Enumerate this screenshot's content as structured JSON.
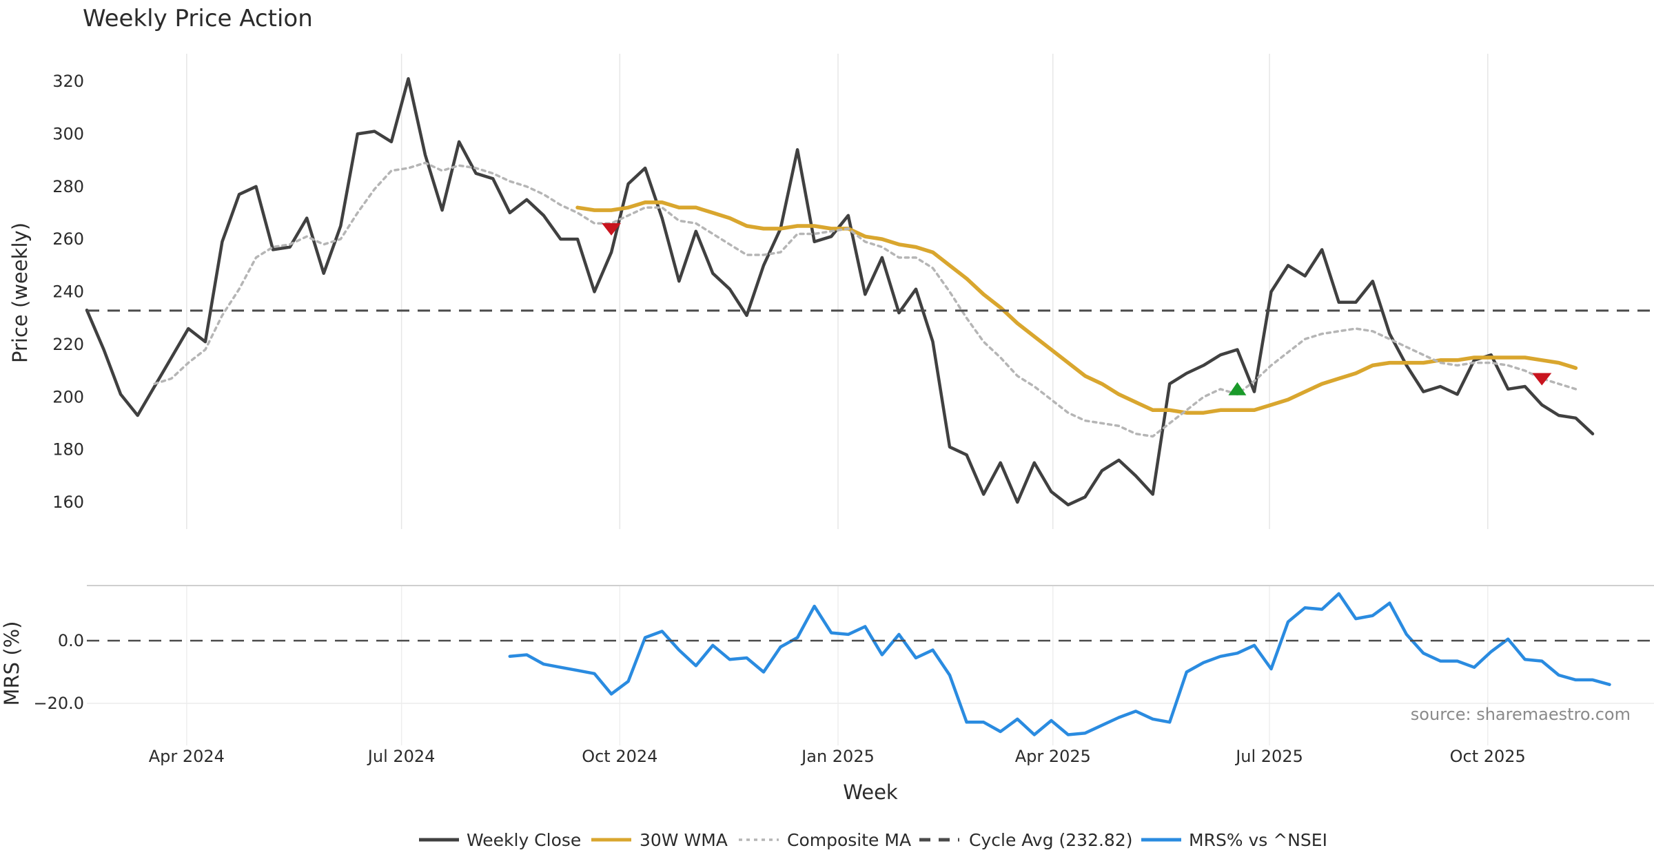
{
  "chart_data": {
    "type": "line",
    "title": "Weekly Price Action",
    "xlabel": "Week",
    "source_note": "source: sharemaestro.com",
    "x_ticks": [
      "Apr 2024",
      "Jul 2024",
      "Oct 2024",
      "Jan 2025",
      "Apr 2025",
      "Jul 2025",
      "Oct 2025"
    ],
    "price_panel": {
      "ylabel": "Price (weekly)",
      "ylim": [
        150,
        330
      ],
      "y_ticks": [
        "160",
        "180",
        "200",
        "220",
        "240",
        "260",
        "280",
        "300",
        "320"
      ],
      "grid": "vertical",
      "series": [
        {
          "name": "Weekly Close",
          "color": "#404040",
          "style": "solid",
          "values": [
            233,
            218,
            201,
            193,
            204,
            215,
            226,
            221,
            259,
            277,
            280,
            256,
            257,
            268,
            247,
            265,
            300,
            301,
            297,
            321,
            292,
            271,
            297,
            285,
            283,
            270,
            275,
            269,
            260,
            260,
            240,
            255,
            281,
            287,
            268,
            244,
            263,
            247,
            241,
            231,
            250,
            264,
            294,
            259,
            261,
            269,
            239,
            253,
            232,
            241,
            221,
            181,
            178,
            163,
            175,
            160,
            175,
            164,
            159,
            162,
            172,
            176,
            170,
            163,
            205,
            209,
            212,
            216,
            218,
            202,
            240,
            250,
            246,
            256,
            236,
            236,
            244,
            224,
            212,
            202,
            204,
            201,
            214,
            216,
            203,
            204,
            197,
            193,
            192,
            186
          ]
        },
        {
          "name": "30W WMA",
          "color": "#d9a62e",
          "style": "solid",
          "start_index": 29,
          "values": [
            272,
            271,
            271,
            272,
            274,
            274,
            272,
            272,
            270,
            268,
            265,
            264,
            264,
            265,
            265,
            264,
            264,
            261,
            260,
            258,
            257,
            255,
            250,
            245,
            239,
            234,
            228,
            223,
            218,
            213,
            208,
            205,
            201,
            198,
            195,
            195,
            194,
            194,
            195,
            195,
            195,
            197,
            199,
            202,
            205,
            207,
            209,
            212,
            213,
            213,
            213,
            214,
            214,
            215,
            215,
            215,
            215,
            214,
            213,
            211
          ]
        },
        {
          "name": "Composite MA",
          "color": "#b5b5b5",
          "style": "dotted",
          "start_index": 4,
          "values": [
            205,
            207,
            213,
            218,
            231,
            241,
            253,
            257,
            258,
            261,
            258,
            260,
            270,
            279,
            286,
            287,
            289,
            286,
            288,
            287,
            285,
            282,
            280,
            277,
            273,
            270,
            266,
            266,
            269,
            272,
            272,
            267,
            266,
            262,
            258,
            254,
            254,
            255,
            262,
            262,
            263,
            264,
            259,
            257,
            253,
            253,
            249,
            240,
            230,
            221,
            215,
            208,
            204,
            199,
            194,
            191,
            190,
            189,
            186,
            185,
            190,
            195,
            200,
            203,
            201,
            206,
            212,
            217,
            222,
            224,
            225,
            226,
            225,
            222,
            219,
            216,
            213,
            212,
            213,
            213,
            212,
            210,
            207,
            205,
            203
          ]
        },
        {
          "name": "Cycle Avg (232.82)",
          "color": "#4a4a4a",
          "style": "dashed",
          "value": 232.82
        }
      ],
      "markers": [
        {
          "type": "sell",
          "shape": "down-triangle",
          "color": "#c8141e",
          "index": 31,
          "value": 264
        },
        {
          "type": "buy",
          "shape": "up-triangle",
          "color": "#1a9a2a",
          "index": 68,
          "value": 203
        },
        {
          "type": "sell",
          "shape": "down-triangle",
          "color": "#c8141e",
          "index": 86,
          "value": 207
        }
      ]
    },
    "mrs_panel": {
      "ylabel": "MRS (%)",
      "ylim": [
        -33,
        17
      ],
      "y_ticks": [
        "0.0",
        "−20.0"
      ],
      "series": [
        {
          "name": "MRS% vs ^NSEI",
          "color": "#2a8be0",
          "style": "solid",
          "start_index": 25,
          "values": [
            -5,
            -4.5,
            -7.5,
            -8.5,
            -9.5,
            -10.5,
            -17,
            -13,
            1,
            3,
            -3,
            -8,
            -1.5,
            -6,
            -5.5,
            -10,
            -2,
            1,
            11,
            2.5,
            2,
            4.5,
            -4.5,
            2,
            -5.5,
            -3,
            -11,
            -26,
            -26,
            -29,
            -25,
            -30,
            -25.5,
            -30,
            -29.5,
            -27,
            -24.5,
            -22.5,
            -25,
            -26,
            -10,
            -7,
            -5,
            -4,
            -1.5,
            -9,
            6,
            10.5,
            10,
            15,
            7,
            8,
            12,
            2,
            -4,
            -6.5,
            -6.5,
            -8.5,
            -3.5,
            0.5,
            -6,
            -6.5,
            -11,
            -12.5,
            -12.5,
            -14
          ]
        },
        {
          "name": "MRS zero line",
          "color": "#4a4a4a",
          "style": "dashed",
          "value": 0
        }
      ]
    },
    "legend": {
      "position": "bottom-center",
      "items": [
        {
          "label": "Weekly Close",
          "color": "#404040",
          "style": "solid"
        },
        {
          "label": "30W WMA",
          "color": "#d9a62e",
          "style": "solid"
        },
        {
          "label": "Composite MA",
          "color": "#b5b5b5",
          "style": "dotted"
        },
        {
          "label": "Cycle Avg (232.82)",
          "color": "#4a4a4a",
          "style": "dashed"
        },
        {
          "label": "MRS% vs ^NSEI",
          "color": "#2a8be0",
          "style": "solid"
        }
      ]
    }
  }
}
